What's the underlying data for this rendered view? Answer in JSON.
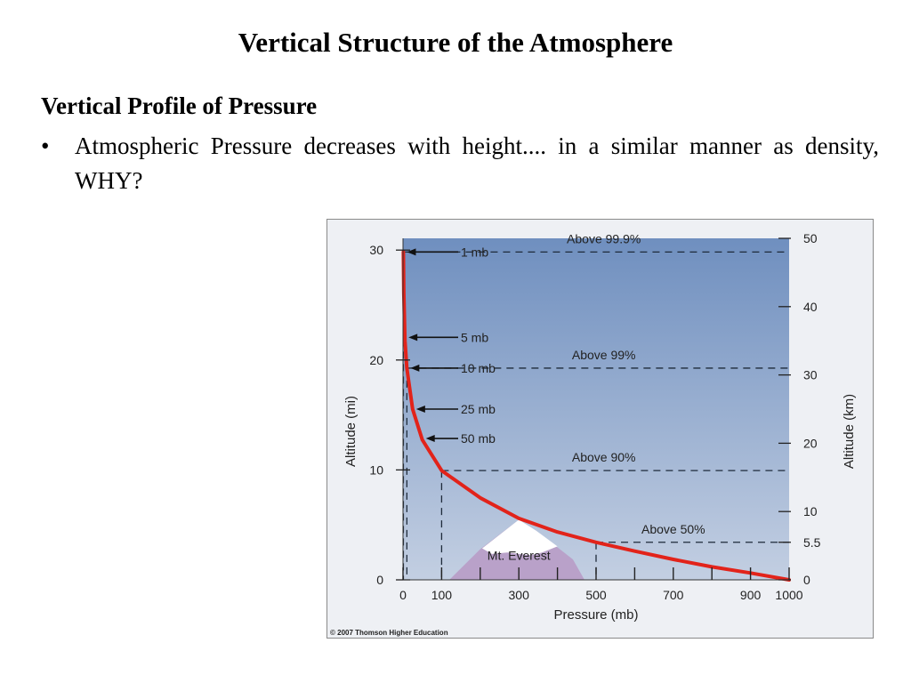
{
  "slide": {
    "title": "Vertical Structure of the Atmosphere",
    "section_heading": "Vertical Profile of Pressure",
    "bullet_symbol": "•",
    "bullet_text": "Atmospheric Pressure decreases with height.... in a similar manner as density, WHY?"
  },
  "colors": {
    "sky_top": "#6f8fbf",
    "sky_bottom": "#c3cfe2",
    "curve": "#e2231a",
    "mountain": "#b9a1c9",
    "snow": "#ffffff",
    "frame": "#8a8a8a"
  },
  "chart_data": {
    "type": "line",
    "title": "",
    "xlabel": "Pressure (mb)",
    "ylabel_left": "Altitude (mi)",
    "ylabel_right": "Altitude (km)",
    "xlim": [
      0,
      1000
    ],
    "ylim_km": [
      0,
      50
    ],
    "x_ticks": [
      0,
      100,
      300,
      500,
      700,
      900,
      1000
    ],
    "y_ticks_mi": [
      0,
      10,
      20,
      30
    ],
    "y_ticks_km": [
      0,
      5.5,
      10,
      20,
      30,
      40,
      50
    ],
    "grid": false,
    "series": [
      {
        "x": [
          1,
          2,
          5,
          10,
          25,
          50,
          100,
          200,
          300,
          400,
          500,
          600,
          700,
          800,
          900,
          1000
        ],
        "y": [
          48,
          42,
          35,
          31,
          25,
          20.5,
          16,
          12,
          9,
          7,
          5.5,
          4.2,
          3,
          1.9,
          1,
          0
        ]
      }
    ],
    "pressure_labels": [
      {
        "text": "1 mb",
        "km": 48
      },
      {
        "text": "5 mb",
        "km": 35.5
      },
      {
        "text": "10 mb",
        "km": 31
      },
      {
        "text": "25 mb",
        "km": 25
      },
      {
        "text": "50 mb",
        "km": 20.7
      }
    ],
    "mass_levels": [
      {
        "text": "Above 99.9%",
        "km": 48,
        "pressure": 1
      },
      {
        "text": "Above 99%",
        "km": 31,
        "pressure": 10
      },
      {
        "text": "Above 90%",
        "km": 16,
        "pressure": 100
      },
      {
        "text": "Above 50%",
        "km": 5.5,
        "pressure": 500
      }
    ],
    "annotation": "Mt. Everest",
    "credit": "© 2007 Thomson Higher Education"
  }
}
